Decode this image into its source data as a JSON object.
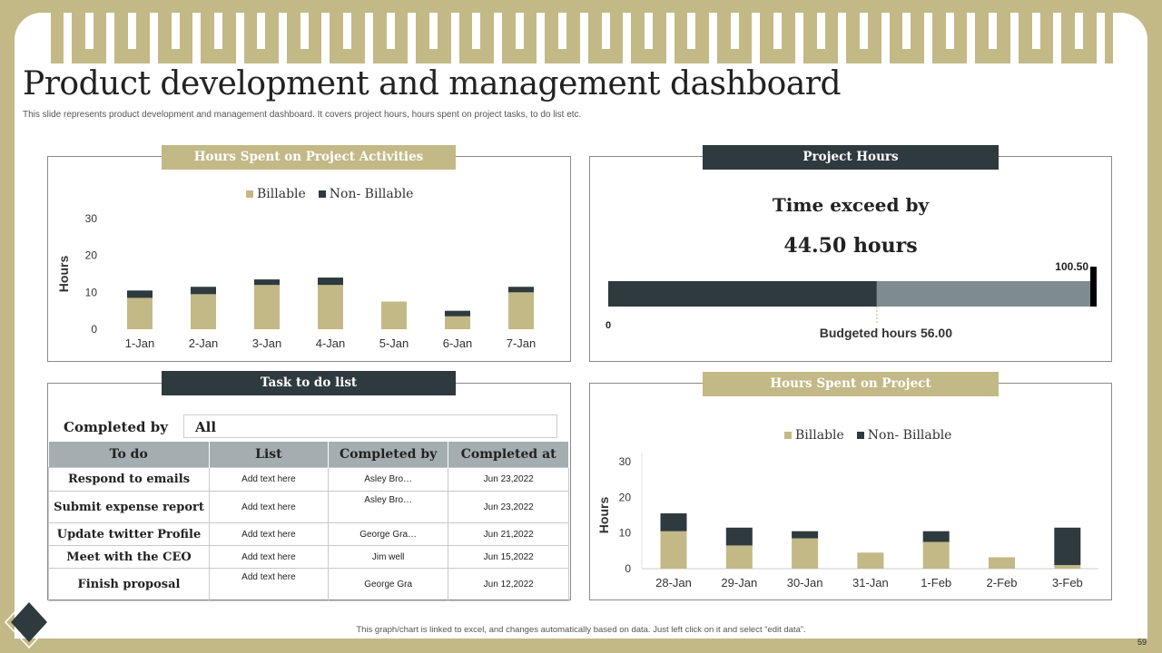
{
  "title": "Product development and management dashboard",
  "subtitle": "This slide represents product development and management  dashboard. It covers project hours, hours spent on project tasks, to do list etc.",
  "colors": {
    "billable": "#c3b986",
    "non_billable": "#2f3a3f",
    "remaining": "#7e8c8f",
    "border": "#c3b986"
  },
  "activities": {
    "header": "Hours Spent on Project Activities",
    "legend": [
      "Billable",
      "Non- Billable"
    ],
    "ylabel": "Hours",
    "yticks": [
      "30",
      "20",
      "10",
      "0"
    ]
  },
  "project_hours": {
    "header": "Project Hours",
    "exceed_label": "Time exceed by",
    "exceed_value": "44.50 hours",
    "max_label": "100.50",
    "zero_label": "0",
    "budget_label": "Budgeted hours 56.00",
    "budgeted": 56.0,
    "max": 100.5
  },
  "todo": {
    "header": "Task to do list",
    "filter_label": "Completed by",
    "filter_value": "All",
    "columns": [
      "To do",
      "List",
      "Completed by",
      "Completed at"
    ],
    "rows": [
      {
        "task": "Respond to emails",
        "list": "Add text here",
        "by": "Asley Bro…",
        "at": "Jun 23,2022"
      },
      {
        "task": "Submit expense report",
        "list": "Add text here",
        "by": "Asley Bro…",
        "at": "Jun 23,2022"
      },
      {
        "task": "Update twitter Profile",
        "list": "Add text here",
        "by": "George Gra…",
        "at": "Jun 21,2022"
      },
      {
        "task": "Meet with the CEO",
        "list": "Add text here",
        "by": "Jim well",
        "at": "Jun 15,2022"
      },
      {
        "task": "Finish proposal",
        "list": "Add text here",
        "by": "George Gra",
        "at": "Jun 12,2022"
      }
    ]
  },
  "spent": {
    "header": "Hours Spent on Project",
    "legend": [
      "Billable",
      "Non- Billable"
    ],
    "ylabel": "Hours",
    "yticks": [
      "30",
      "20",
      "10",
      "0"
    ]
  },
  "chart_data": [
    {
      "type": "bar",
      "title": "Hours Spent on Project Activities",
      "ylabel": "Hours",
      "ylim": [
        0,
        30
      ],
      "categories": [
        "1-Jan",
        "2-Jan",
        "3-Jan",
        "4-Jan",
        "5-Jan",
        "6-Jan",
        "7-Jan"
      ],
      "series": [
        {
          "name": "Billable",
          "values": [
            8.5,
            9.5,
            12,
            12,
            7.5,
            3.5,
            10
          ]
        },
        {
          "name": "Non- Billable",
          "values": [
            2,
            2,
            1.5,
            2,
            0,
            1.5,
            1.5
          ]
        }
      ],
      "stacked": true
    },
    {
      "type": "bar",
      "title": "Hours Spent on Project",
      "ylabel": "Hours",
      "ylim": [
        0,
        30
      ],
      "categories": [
        "28-Jan",
        "29-Jan",
        "30-Jan",
        "31-Jan",
        "1-Feb",
        "2-Feb",
        "3-Feb"
      ],
      "series": [
        {
          "name": "Billable",
          "values": [
            10.5,
            6.5,
            8.5,
            4.5,
            7.5,
            3.2,
            1
          ]
        },
        {
          "name": "Non- Billable",
          "values": [
            5,
            5,
            2,
            0,
            3,
            0,
            10.5
          ]
        }
      ],
      "stacked": true
    }
  ],
  "footer": "This graph/chart is linked to excel, and changes automatically based on data. Just left click on it and select “edit data”.",
  "page_number": "59"
}
